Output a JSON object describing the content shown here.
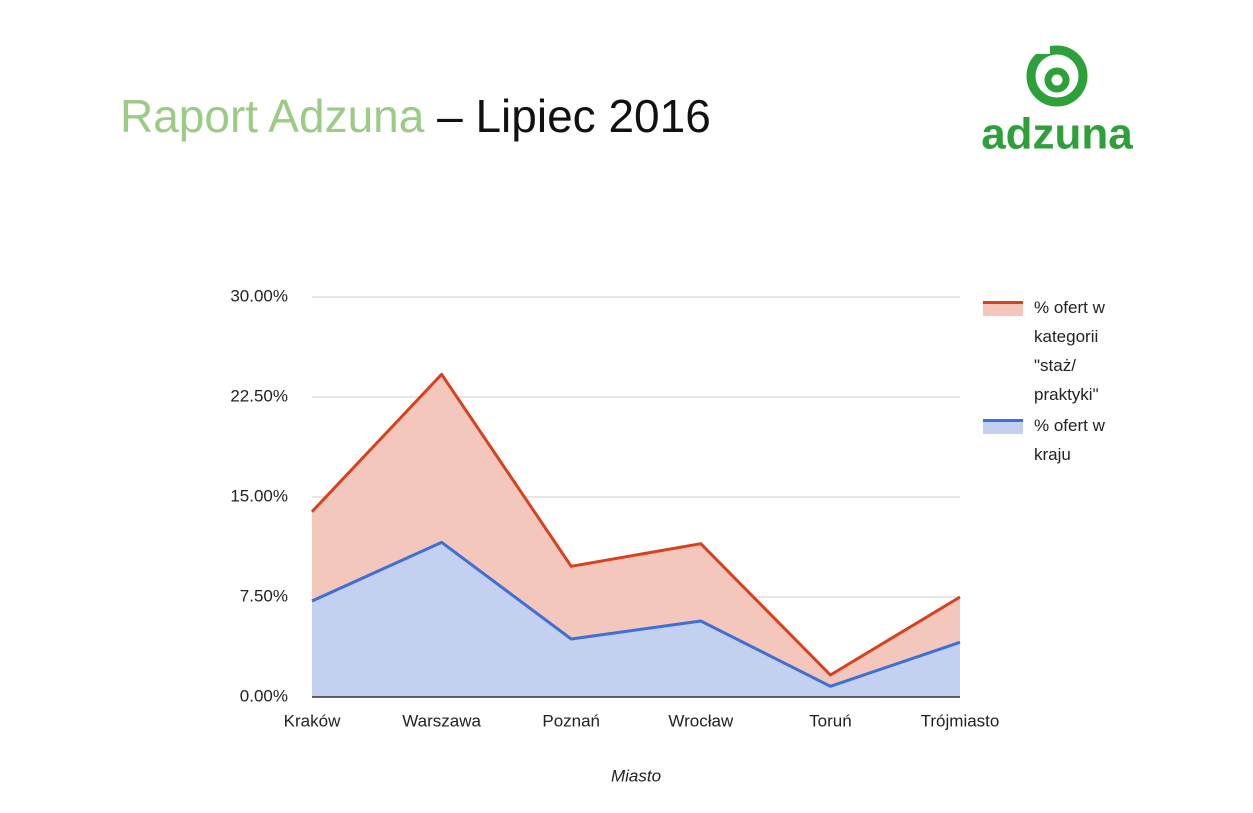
{
  "header": {
    "title_brand": "Raport Adzuna",
    "title_rest": "– Lipiec 2016",
    "logo": "adzuna"
  },
  "chart_data": {
    "type": "area",
    "x_label": "Miasto",
    "categories": [
      "Kraków",
      "Warszawa",
      "Poznań",
      "Wrocław",
      "Toruń",
      "Trójmiasto"
    ],
    "series": [
      {
        "name": "% ofert w kategorii \"staż/ praktyki\"",
        "color": "#d9401f",
        "fill": "#f4c7bc",
        "values": [
          13.9,
          24.2,
          9.8,
          11.5,
          1.65,
          7.5
        ]
      },
      {
        "name": "% ofert w kraju",
        "color": "#3e6fd8",
        "fill": "#c3d0ef",
        "values": [
          7.2,
          11.6,
          4.35,
          5.7,
          0.8,
          4.1
        ]
      }
    ],
    "ylim": [
      0,
      30
    ],
    "yticks": [
      {
        "value": 0,
        "label": "0.00%"
      },
      {
        "value": 7.5,
        "label": "7.50%"
      },
      {
        "value": 15,
        "label": "15.00%"
      },
      {
        "value": 22.5,
        "label": "22.50%"
      },
      {
        "value": 30,
        "label": "30.00%"
      }
    ],
    "grid": true,
    "legend": "right"
  }
}
